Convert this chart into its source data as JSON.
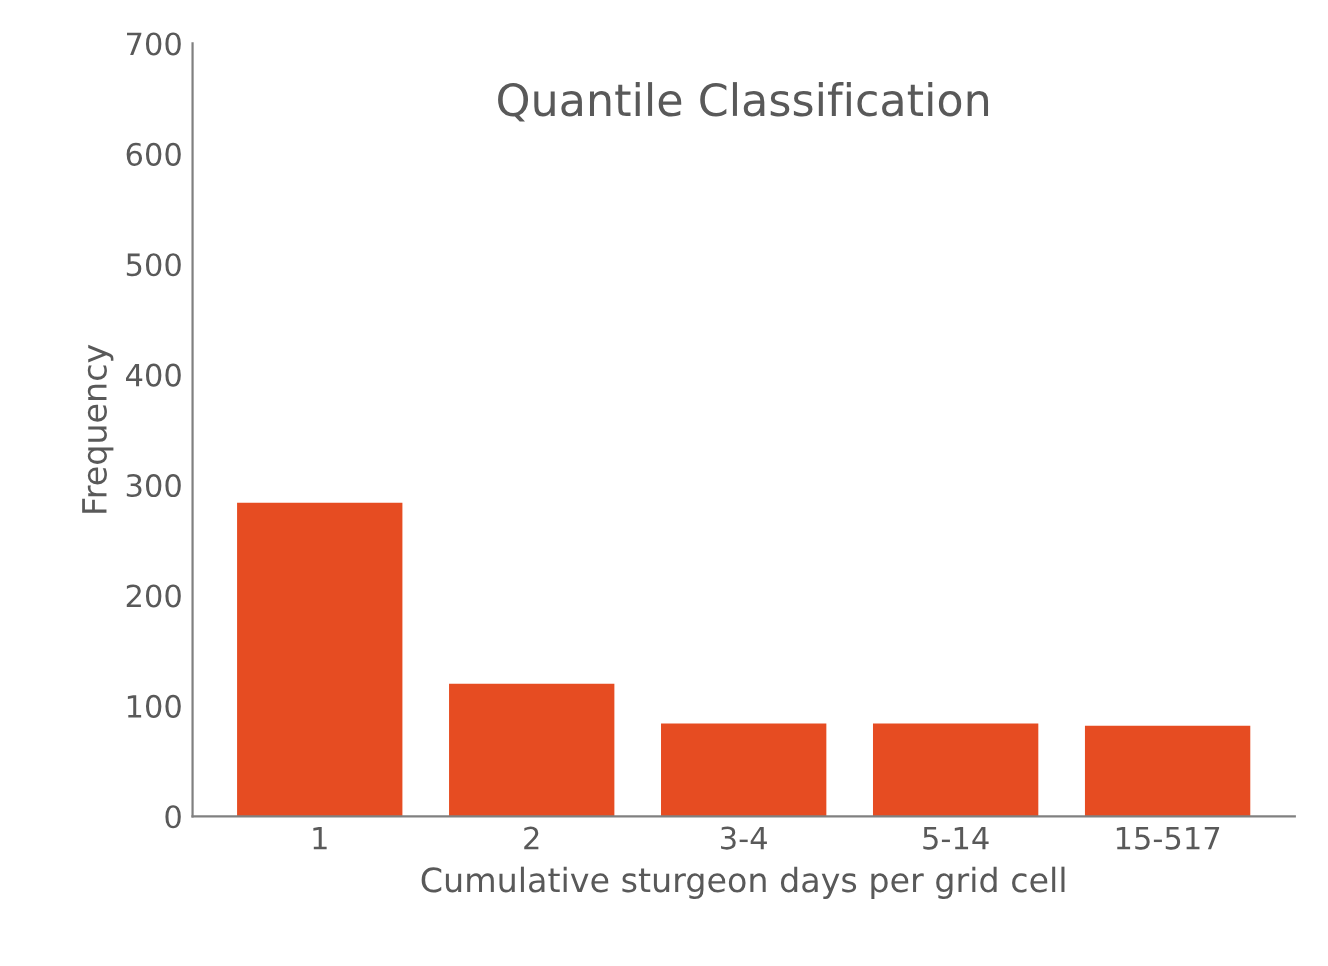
{
  "chart_data": {
    "type": "bar",
    "title": "Quantile Classification",
    "xlabel": "Cumulative sturgeon days per grid cell",
    "ylabel": "Frequency",
    "categories": [
      "1",
      "2",
      "3-4",
      "5-14",
      "15-517"
    ],
    "values": [
      284,
      120,
      84,
      84,
      82
    ],
    "color": "#e64c22",
    "ylim": [
      0,
      700
    ],
    "yticks": [
      0,
      100,
      200,
      300,
      400,
      500,
      600,
      700
    ],
    "grid": false,
    "legend": false
  }
}
